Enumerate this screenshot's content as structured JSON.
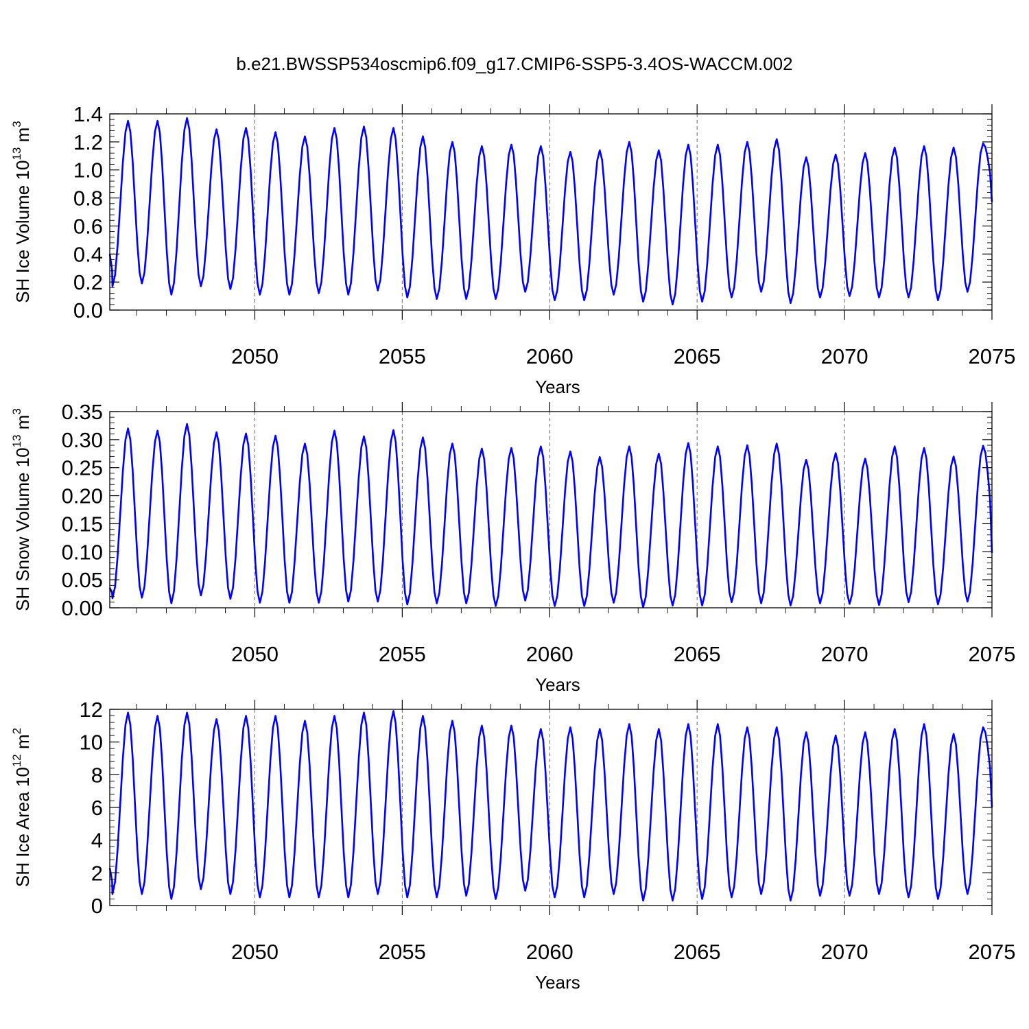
{
  "figure": {
    "title": "b.e21.BWSSP534oscmip6.f09_g17.CMIP6-SSP5-3.4OS-WACCM.002"
  },
  "colors": {
    "line": "#0000ff",
    "grid": "#666666"
  },
  "chart_data": [
    {
      "type": "line",
      "title": "",
      "xlabel": "Years",
      "ylabel": {
        "main": "SH Ice Volume 10",
        "sup1": "13",
        "mid": " m",
        "sup2": "3"
      },
      "xlim": [
        2045.08,
        2075.0
      ],
      "ylim": [
        0.0,
        1.4
      ],
      "xticks": [
        2050,
        2055,
        2060,
        2065,
        2070,
        2075
      ],
      "xtick_labels": [
        "2050",
        "2055",
        "2060",
        "2065",
        "2070",
        "2075"
      ],
      "yticks": [
        0.0,
        0.2,
        0.4,
        0.6,
        0.8,
        1.0,
        1.2,
        1.4
      ],
      "ytick_labels": [
        "0.0",
        "0.2",
        "0.4",
        "0.6",
        "0.8",
        "1.0",
        "1.2",
        "1.4"
      ],
      "grid": "vertical dashed at major x ticks",
      "series": [
        {
          "x_start": 2045.08,
          "x_step": 0.08333333,
          "peaks": [
            1.35,
            1.35,
            1.37,
            1.29,
            1.3,
            1.27,
            1.24,
            1.3,
            1.31,
            1.3,
            1.24,
            1.2,
            1.17,
            1.18,
            1.17,
            1.13,
            1.14,
            1.2,
            1.14,
            1.18,
            1.18,
            1.2,
            1.22,
            1.09,
            1.11,
            1.12,
            1.16,
            1.17,
            1.16,
            1.19
          ],
          "troughs": [
            0.17,
            0.19,
            0.11,
            0.17,
            0.15,
            0.11,
            0.11,
            0.12,
            0.11,
            0.14,
            0.09,
            0.08,
            0.08,
            0.08,
            0.13,
            0.07,
            0.07,
            0.11,
            0.06,
            0.04,
            0.06,
            0.09,
            0.13,
            0.05,
            0.09,
            0.1,
            0.09,
            0.09,
            0.07,
            0.13
          ],
          "start_value": 0.4,
          "end_value": 0.77
        }
      ]
    },
    {
      "type": "line",
      "title": "",
      "xlabel": "Years",
      "ylabel": {
        "main": "SH Snow Volume 10",
        "sup1": "13",
        "mid": " m",
        "sup2": "3"
      },
      "xlim": [
        2045.08,
        2075.0
      ],
      "ylim": [
        0.0,
        0.35
      ],
      "xticks": [
        2050,
        2055,
        2060,
        2065,
        2070,
        2075
      ],
      "xtick_labels": [
        "2050",
        "2055",
        "2060",
        "2065",
        "2070",
        "2075"
      ],
      "yticks": [
        0.0,
        0.05,
        0.1,
        0.15,
        0.2,
        0.25,
        0.3,
        0.35
      ],
      "ytick_labels": [
        "0.00",
        "0.05",
        "0.10",
        "0.15",
        "0.20",
        "0.25",
        "0.30",
        "0.35"
      ],
      "grid": "vertical dashed at major x ticks",
      "series": [
        {
          "x_start": 2045.08,
          "x_step": 0.08333333,
          "peaks": [
            0.32,
            0.316,
            0.328,
            0.313,
            0.311,
            0.307,
            0.293,
            0.316,
            0.306,
            0.317,
            0.304,
            0.293,
            0.284,
            0.285,
            0.288,
            0.279,
            0.269,
            0.288,
            0.275,
            0.294,
            0.288,
            0.29,
            0.293,
            0.264,
            0.276,
            0.266,
            0.288,
            0.285,
            0.27,
            0.289
          ],
          "troughs": [
            0.017,
            0.018,
            0.008,
            0.022,
            0.016,
            0.009,
            0.009,
            0.009,
            0.011,
            0.011,
            0.006,
            0.008,
            0.008,
            0.003,
            0.013,
            0.003,
            0.003,
            0.009,
            0.001,
            0.004,
            0.004,
            0.01,
            0.008,
            0.004,
            0.008,
            0.007,
            0.005,
            0.01,
            0.006,
            0.011
          ],
          "start_value": 0.036,
          "end_value": 0.098
        }
      ]
    },
    {
      "type": "line",
      "title": "",
      "xlabel": "Years",
      "ylabel": {
        "main": "SH Ice Area 10",
        "sup1": "12",
        "mid": " m",
        "sup2": "2"
      },
      "xlim": [
        2045.08,
        2075.0
      ],
      "ylim": [
        0,
        12
      ],
      "xticks": [
        2050,
        2055,
        2060,
        2065,
        2070,
        2075
      ],
      "xtick_labels": [
        "2050",
        "2055",
        "2060",
        "2065",
        "2070",
        "2075"
      ],
      "yticks": [
        0,
        2,
        4,
        6,
        8,
        10,
        12
      ],
      "ytick_labels": [
        "0",
        "2",
        "4",
        "6",
        "8",
        "10",
        "12"
      ],
      "grid": "vertical dashed at major x ticks",
      "series": [
        {
          "x_start": 2045.08,
          "x_step": 0.08333333,
          "peaks": [
            11.8,
            11.6,
            11.8,
            11.4,
            11.6,
            11.6,
            11.3,
            11.6,
            11.8,
            11.9,
            11.6,
            11.3,
            11.0,
            11.0,
            10.8,
            10.9,
            10.8,
            11.1,
            10.8,
            11.1,
            11.1,
            10.9,
            10.9,
            10.6,
            10.4,
            10.6,
            10.8,
            11.1,
            10.5,
            10.9
          ],
          "troughs": [
            0.7,
            0.7,
            0.4,
            1.0,
            0.7,
            0.5,
            0.5,
            0.5,
            0.5,
            0.7,
            0.5,
            0.5,
            0.6,
            0.4,
            0.9,
            0.5,
            0.5,
            0.7,
            0.3,
            0.3,
            0.4,
            0.5,
            0.7,
            0.3,
            0.6,
            0.6,
            0.7,
            0.5,
            0.4,
            0.7
          ],
          "start_value": 2.3,
          "end_value": 6.0
        }
      ]
    }
  ]
}
